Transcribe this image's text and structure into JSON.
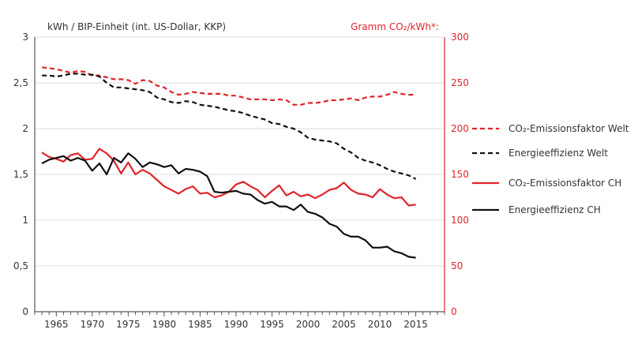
{
  "chart_data": {
    "type": "line",
    "title": "",
    "y_left_label": "kWh / BIP-Einheit (int. US-Dollar, KKP)",
    "y_right_label": "Gramm CO₂/kWh*:",
    "ylim_left": [
      0,
      3
    ],
    "ylim_right": [
      0,
      300
    ],
    "yticks_left": [
      "0",
      "0,5",
      "1",
      "1,5",
      "2",
      "2,5",
      "3"
    ],
    "yticks_right": [
      "0",
      "50",
      "100",
      "150",
      "200",
      "250",
      "300"
    ],
    "xlim": [
      1962,
      2019
    ],
    "xticks": [
      1965,
      1970,
      1975,
      1980,
      1985,
      1990,
      1995,
      2000,
      2005,
      2010,
      2015
    ],
    "legend_position": "right",
    "x": [
      1963,
      1964,
      1965,
      1966,
      1967,
      1968,
      1969,
      1970,
      1971,
      1972,
      1973,
      1974,
      1975,
      1976,
      1977,
      1978,
      1979,
      1980,
      1981,
      1982,
      1983,
      1984,
      1985,
      1986,
      1987,
      1988,
      1989,
      1990,
      1991,
      1992,
      1993,
      1994,
      1995,
      1996,
      1997,
      1998,
      1999,
      2000,
      2001,
      2002,
      2003,
      2004,
      2005,
      2006,
      2007,
      2008,
      2009,
      2010,
      2011,
      2012,
      2013,
      2014,
      2015
    ],
    "series": [
      {
        "name": "CO₂-Emissionsfaktor Welt",
        "axis": "right",
        "color": "#e0242b",
        "dash": true,
        "values": [
          267,
          266,
          265,
          263,
          261,
          263,
          262,
          258,
          258,
          256,
          254,
          254,
          253,
          249,
          253,
          252,
          247,
          245,
          240,
          237,
          238,
          240,
          239,
          238,
          238,
          238,
          236,
          236,
          234,
          232,
          232,
          232,
          231,
          232,
          231,
          226,
          226,
          228,
          228,
          229,
          231,
          231,
          232,
          233,
          231,
          234,
          235,
          235,
          237,
          240,
          238,
          237,
          237
        ]
      },
      {
        "name": "Energieeffizienz Welt",
        "axis": "left",
        "color": "#111111",
        "dash": true,
        "values": [
          2.58,
          2.58,
          2.57,
          2.58,
          2.6,
          2.6,
          2.59,
          2.59,
          2.57,
          2.5,
          2.45,
          2.45,
          2.44,
          2.43,
          2.42,
          2.4,
          2.34,
          2.32,
          2.29,
          2.28,
          2.3,
          2.29,
          2.26,
          2.25,
          2.24,
          2.22,
          2.2,
          2.19,
          2.17,
          2.14,
          2.12,
          2.1,
          2.06,
          2.05,
          2.02,
          2.0,
          1.96,
          1.9,
          1.88,
          1.87,
          1.86,
          1.84,
          1.78,
          1.74,
          1.68,
          1.65,
          1.63,
          1.6,
          1.56,
          1.53,
          1.51,
          1.49,
          1.45
        ]
      },
      {
        "name": "CO₂-Emissionsfaktor CH",
        "axis": "right",
        "color": "#e0242b",
        "dash": false,
        "values": [
          174,
          169,
          167,
          164,
          171,
          173,
          166,
          167,
          178,
          173,
          165,
          151,
          163,
          150,
          155,
          151,
          144,
          137,
          133,
          129,
          134,
          137,
          129,
          130,
          125,
          127,
          131,
          139,
          142,
          137,
          133,
          125,
          132,
          138,
          127,
          131,
          126,
          128,
          124,
          128,
          133,
          135,
          141,
          133,
          129,
          128,
          125,
          134,
          128,
          124,
          125,
          116,
          117
        ]
      },
      {
        "name": "Energieeffizienz CH",
        "axis": "left",
        "color": "#111111",
        "dash": false,
        "values": [
          1.62,
          1.66,
          1.68,
          1.7,
          1.65,
          1.68,
          1.65,
          1.54,
          1.62,
          1.5,
          1.68,
          1.63,
          1.73,
          1.67,
          1.58,
          1.63,
          1.61,
          1.58,
          1.6,
          1.51,
          1.56,
          1.55,
          1.53,
          1.48,
          1.31,
          1.3,
          1.31,
          1.32,
          1.29,
          1.28,
          1.22,
          1.18,
          1.2,
          1.15,
          1.15,
          1.11,
          1.17,
          1.09,
          1.07,
          1.03,
          0.96,
          0.93,
          0.85,
          0.82,
          0.82,
          0.78,
          0.7,
          0.7,
          0.71,
          0.66,
          0.64,
          0.6,
          0.59
        ]
      }
    ]
  }
}
